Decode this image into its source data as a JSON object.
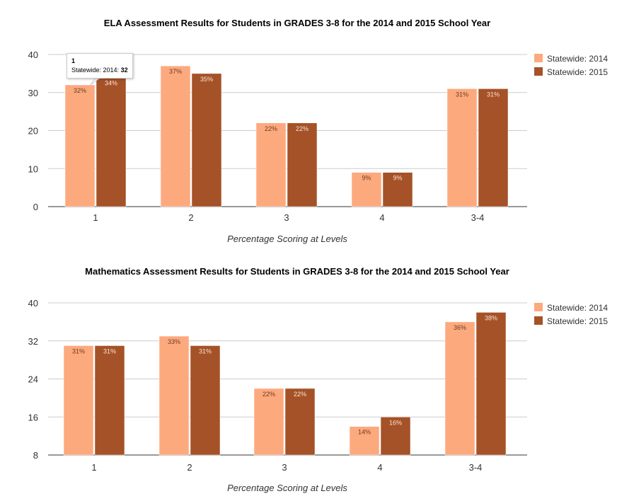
{
  "colors": {
    "s2014": "#fda97e",
    "s2015": "#a55228"
  },
  "chart_data": [
    {
      "type": "bar",
      "title": "ELA Assessment Results for Students in GRADES 3-8 for the 2014 and 2015 School Year",
      "xlabel": "Percentage Scoring at Levels",
      "ylabel": "",
      "categories": [
        "1",
        "2",
        "3",
        "4",
        "3-4"
      ],
      "series": [
        {
          "name": "Statewide: 2014",
          "values": [
            32,
            37,
            22,
            9,
            31
          ],
          "labels": [
            "32%",
            "37%",
            "22%",
            "9%",
            "31%"
          ]
        },
        {
          "name": "Statewide: 2015",
          "values": [
            34,
            35,
            22,
            9,
            31
          ],
          "labels": [
            "34%",
            "35%",
            "22%",
            "9%",
            "31%"
          ]
        }
      ],
      "ylim": [
        0,
        40
      ],
      "yticks": [
        "0",
        "10",
        "20",
        "30",
        "40"
      ],
      "grid": true,
      "legend": "right",
      "tooltip": {
        "title": "1",
        "label": "Statewide: 2014: ",
        "value": "32"
      }
    },
    {
      "type": "bar",
      "title": "Mathematics Assessment Results for Students in GRADES 3-8 for the 2014 and 2015 School Year",
      "xlabel": "Percentage Scoring at Levels",
      "ylabel": "",
      "categories": [
        "1",
        "2",
        "3",
        "4",
        "3-4"
      ],
      "series": [
        {
          "name": "Statewide: 2014",
          "values": [
            31,
            33,
            22,
            14,
            36
          ],
          "labels": [
            "31%",
            "33%",
            "22%",
            "14%",
            "36%"
          ]
        },
        {
          "name": "Statewide: 2015",
          "values": [
            31,
            31,
            22,
            16,
            38
          ],
          "labels": [
            "31%",
            "31%",
            "22%",
            "16%",
            "38%"
          ]
        }
      ],
      "ylim": [
        8,
        40
      ],
      "yticks": [
        "8",
        "16",
        "24",
        "32",
        "40"
      ],
      "grid": true,
      "legend": "right"
    }
  ]
}
